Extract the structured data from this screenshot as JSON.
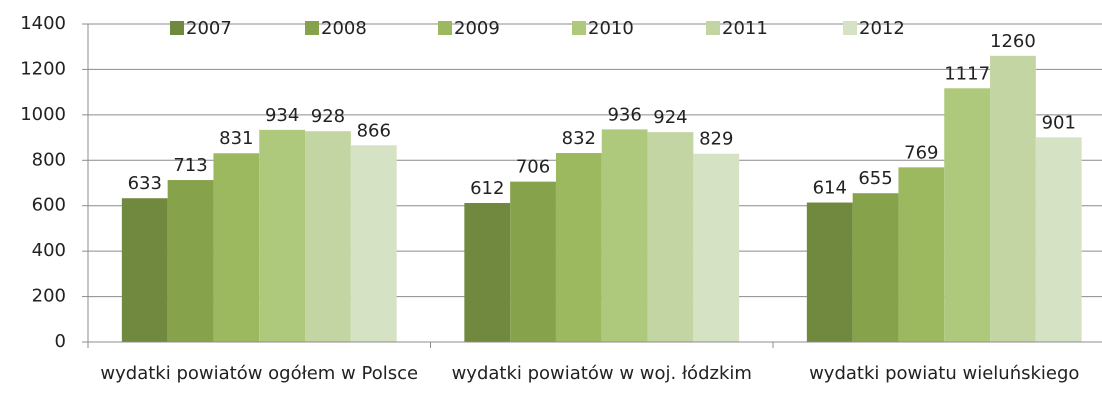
{
  "chart_data": {
    "type": "bar",
    "categories": [
      "wydatki powiatów ogółem w Polsce",
      "wydatki powiatów w woj. łódzkim",
      "wydatki powiatu wieluńskiego"
    ],
    "series": [
      {
        "name": "2007",
        "color": "#71893f",
        "values": [
          633,
          612,
          614
        ]
      },
      {
        "name": "2008",
        "color": "#86a34c",
        "values": [
          713,
          706,
          655
        ]
      },
      {
        "name": "2009",
        "color": "#9cb960",
        "values": [
          831,
          832,
          769
        ]
      },
      {
        "name": "2010",
        "color": "#afc97c",
        "values": [
          934,
          936,
          1117
        ]
      },
      {
        "name": "2011",
        "color": "#c3d5a3",
        "values": [
          928,
          924,
          1260
        ]
      },
      {
        "name": "2012",
        "color": "#d6e2c4",
        "values": [
          866,
          829,
          901
        ]
      }
    ],
    "ylim": [
      0,
      1400
    ],
    "yticks": [
      0,
      200,
      400,
      600,
      800,
      1000,
      1200,
      1400
    ],
    "grid": true,
    "legend": "top"
  }
}
